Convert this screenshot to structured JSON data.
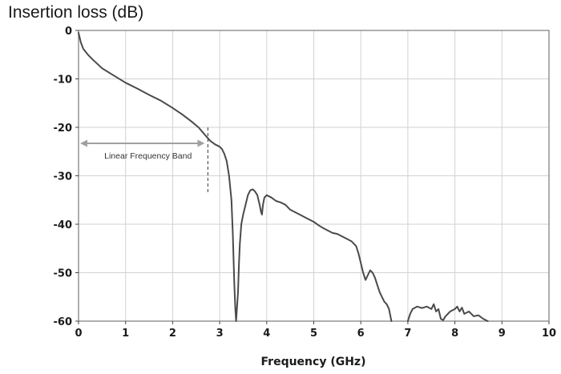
{
  "chart_data": {
    "type": "line",
    "title": "Insertion loss (dB)",
    "xlabel": "Frequency (GHz)",
    "ylabel": "",
    "xlim": [
      0,
      10
    ],
    "ylim": [
      -60,
      0
    ],
    "x_ticks": [
      "0",
      "1",
      "2",
      "3",
      "4",
      "5",
      "6",
      "7",
      "8",
      "9",
      "10"
    ],
    "y_ticks": [
      "0",
      "-10",
      "-20",
      "-30",
      "-40",
      "-50",
      "-60"
    ],
    "grid": true,
    "colors": {
      "line": "#4a4a4a",
      "grid": "#d2d2d2",
      "frame": "#7a7a7a",
      "annotation": "#a0a0a0"
    },
    "annotation": {
      "label": "Linear Frequency Band",
      "x_start": 0.0,
      "x_end": 2.75,
      "y": -23.3,
      "marker_x": 2.75,
      "marker_y_range": [
        -20,
        -33.5
      ]
    },
    "series": [
      {
        "x": [
          0,
          0.05,
          0.1,
          0.2,
          0.3,
          0.5,
          0.75,
          1.0,
          1.25,
          1.5,
          1.75,
          2.0,
          2.2,
          2.4,
          2.55,
          2.7,
          2.8,
          2.9,
          3.0,
          3.05,
          3.1,
          3.15,
          3.2,
          3.25,
          3.28,
          3.31,
          3.33,
          3.35,
          3.37,
          3.39,
          3.41,
          3.43,
          3.46,
          3.5,
          3.55,
          3.6,
          3.65,
          3.7,
          3.75,
          3.8,
          3.85,
          3.88,
          3.9,
          3.92,
          3.95,
          4.0,
          4.1,
          4.2,
          4.3,
          4.4,
          4.5,
          4.7,
          4.9,
          5.0,
          5.1,
          5.2,
          5.3,
          5.4,
          5.5,
          5.6,
          5.7,
          5.8,
          5.9,
          5.95,
          6.0,
          6.05,
          6.1,
          6.15,
          6.2,
          6.25,
          6.3,
          6.35,
          6.4,
          6.45,
          6.5,
          6.55,
          6.6,
          6.63,
          6.65
        ],
        "y": [
          -0.5,
          -2.5,
          -3.8,
          -5.0,
          -6.0,
          -7.8,
          -9.3,
          -10.8,
          -12.0,
          -13.3,
          -14.5,
          -16.0,
          -17.3,
          -18.8,
          -20.0,
          -21.7,
          -22.8,
          -23.5,
          -24.0,
          -24.5,
          -25.5,
          -27.0,
          -30.0,
          -35.0,
          -42.0,
          -52.0,
          -57.0,
          -60.0,
          -57.0,
          -54.0,
          -48.0,
          -44.0,
          -40.0,
          -38.0,
          -36.0,
          -34.0,
          -33.0,
          -32.8,
          -33.2,
          -34.0,
          -36.0,
          -37.5,
          -38.0,
          -36.0,
          -34.5,
          -34.0,
          -34.5,
          -35.2,
          -35.5,
          -36.0,
          -37.0,
          -38.0,
          -39.0,
          -39.5,
          -40.2,
          -40.8,
          -41.3,
          -41.8,
          -42.0,
          -42.5,
          -43.0,
          -43.5,
          -44.5,
          -46.0,
          -48.0,
          -50.0,
          -51.5,
          -50.5,
          -49.5,
          -50.0,
          -51.0,
          -52.5,
          -54.0,
          -55.0,
          -56.0,
          -56.5,
          -57.5,
          -59.0,
          -60.0
        ]
      },
      {
        "x": [
          7.0,
          7.05,
          7.1,
          7.2,
          7.3,
          7.4,
          7.5,
          7.55,
          7.6,
          7.65,
          7.7,
          7.75,
          7.8,
          7.85,
          7.9,
          8.0,
          8.05,
          8.1,
          8.15,
          8.2,
          8.3,
          8.4,
          8.5,
          8.6,
          8.7
        ],
        "y": [
          -60.0,
          -58.5,
          -57.5,
          -57.0,
          -57.3,
          -57.0,
          -57.5,
          -56.5,
          -58.0,
          -57.5,
          -59.5,
          -59.8,
          -59.0,
          -58.5,
          -58.0,
          -57.5,
          -57.0,
          -58.0,
          -57.2,
          -58.5,
          -58.0,
          -59.0,
          -58.8,
          -59.5,
          -60.0
        ]
      }
    ]
  }
}
